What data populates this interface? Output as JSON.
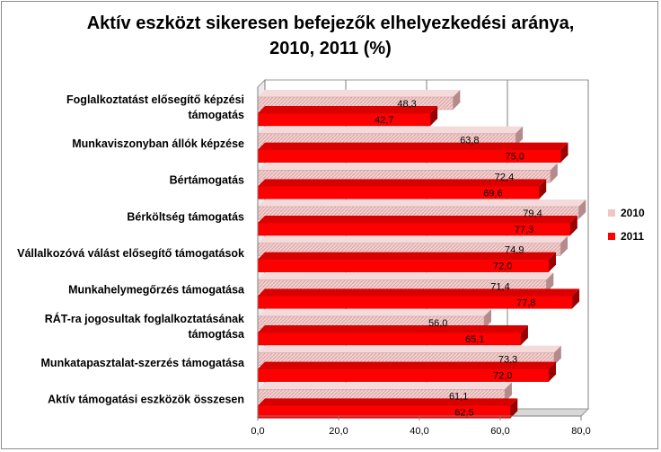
{
  "chart_data": {
    "type": "bar",
    "orientation": "horizontal",
    "title": "Aktív eszközt sikeresen befejezők elhelyezkedési aránya,\n2010, 2011 (%)",
    "categories": [
      "Foglalkoztatást elősegítő képzési támogatás",
      "Munkaviszonyban állók képzése",
      "Bértámogatás",
      "Bérköltség támogatás",
      "Vállalkozóvá válást elősegítő támogatások",
      "Munkahelymegőrzés támogatása",
      "RÁT-ra jogosultak foglalkoztatásának támogtása",
      "Munkatapasztalat-szerzés támogatása",
      "Aktív támogatási eszközök összesen"
    ],
    "category_lines": [
      [
        "Foglalkoztatást elősegítő képzési",
        "támogatás"
      ],
      [
        "Munkaviszonyban állók képzése"
      ],
      [
        "Bértámogatás"
      ],
      [
        "Bérköltség támogatás"
      ],
      [
        "Vállalkozóvá válást elősegítő támogatások"
      ],
      [
        "Munkahelymegőrzés támogatása"
      ],
      [
        "RÁT-ra jogosultak foglalkoztatásának",
        "támogtása"
      ],
      [
        "Munkatapasztalat-szerzés támogatása"
      ],
      [
        "Aktív támogatási eszközök összesen"
      ]
    ],
    "series": [
      {
        "name": "2010",
        "color": "#e8b3b3",
        "values": [
          48.3,
          63.8,
          72.4,
          79.4,
          74.9,
          71.4,
          56.0,
          73.3,
          61.1
        ],
        "labels": [
          "48,3",
          "63,8",
          "72,4",
          "79,4",
          "74,9",
          "71,4",
          "56,0",
          "73,3",
          "61,1"
        ]
      },
      {
        "name": "2011",
        "color": "#ff0000",
        "values": [
          42.7,
          75.0,
          69.6,
          77.3,
          72.0,
          77.8,
          65.1,
          72.0,
          62.5
        ],
        "labels": [
          "42,7",
          "75,0",
          "69,6",
          "77,3",
          "72,0",
          "77,8",
          "65,1",
          "72,0",
          "62,5"
        ]
      }
    ],
    "x_ticks": [
      0,
      20,
      40,
      60,
      80
    ],
    "x_tick_labels": [
      "0,0",
      "20,0",
      "40,0",
      "60,0",
      "80,0"
    ],
    "xlim": [
      0,
      80
    ],
    "grid": true,
    "legend_position": "right",
    "style": "3d"
  }
}
